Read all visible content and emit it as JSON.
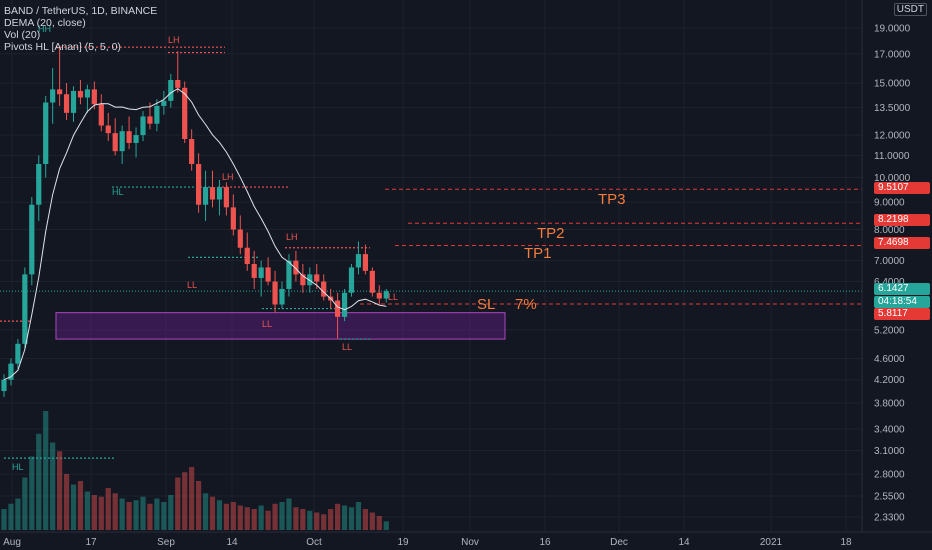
{
  "header": {
    "symbol_line": "BAND / TetherUS, 1D, BINANCE",
    "indicators": [
      "DEMA (20, close)",
      "Vol (20)",
      "Pivots HL [Anan] (5, 5, 0)"
    ]
  },
  "axis": {
    "currency": "USDT",
    "y_ticks": [
      "19.0000",
      "17.0000",
      "15.0000",
      "13.5000",
      "12.0000",
      "11.0000",
      "10.0000",
      "9.0000",
      "8.0000",
      "7.0000",
      "6.4000",
      "5.2000",
      "4.6000",
      "4.2000",
      "3.8000",
      "3.4000",
      "3.1000",
      "2.8000",
      "2.5500",
      "2.3300"
    ],
    "x_ticks": [
      "Aug",
      "17",
      "Sep",
      "14",
      "Oct",
      "19",
      "Nov",
      "16",
      "Dec",
      "14",
      "2021",
      "18"
    ]
  },
  "price_labels": {
    "tp3": "9.5107",
    "tp2": "8.2198",
    "tp1": "7.4698",
    "last": "6.1427",
    "countdown": "04:18:54",
    "sl": "5.8117"
  },
  "annotations": {
    "tp3": "TP3",
    "tp2": "TP2",
    "tp1": "TP1",
    "sl": "SL",
    "sl_pct": "7%"
  },
  "pivot_labels": [
    "HH",
    "LH",
    "HL",
    "LH",
    "LL",
    "LH",
    "LL",
    "LL",
    "HL",
    "LL"
  ],
  "colors": {
    "background": "#131722",
    "up": "#26a69a",
    "down": "#ef5350",
    "dema": "#e0e3eb",
    "zone": "#7b1fa2",
    "annotation": "#f57c3a",
    "level_line": "#e53935"
  },
  "chart_data": {
    "type": "candlestick",
    "title": "BAND / TetherUS, 1D, BINANCE",
    "scale": "log",
    "ylim": [
      2.2,
      21
    ],
    "timeframe": "1D",
    "x_range": [
      "Aug",
      "18"
    ],
    "candles": [
      [
        4.0,
        4.3,
        3.9,
        4.2
      ],
      [
        4.2,
        4.6,
        4.1,
        4.5
      ],
      [
        4.5,
        5.0,
        4.4,
        4.9
      ],
      [
        4.9,
        6.8,
        4.8,
        6.6
      ],
      [
        6.6,
        9.2,
        6.3,
        8.9
      ],
      [
        8.9,
        11.0,
        8.3,
        10.6
      ],
      [
        10.6,
        14.2,
        10.0,
        13.8
      ],
      [
        13.8,
        16.0,
        12.6,
        14.6
      ],
      [
        14.6,
        17.5,
        13.6,
        14.3
      ],
      [
        14.3,
        15.0,
        12.8,
        13.2
      ],
      [
        13.2,
        14.8,
        12.7,
        14.5
      ],
      [
        14.5,
        15.2,
        13.7,
        14.1
      ],
      [
        14.1,
        14.9,
        13.2,
        14.6
      ],
      [
        14.6,
        15.1,
        13.4,
        13.7
      ],
      [
        13.7,
        14.3,
        12.2,
        12.5
      ],
      [
        12.5,
        13.2,
        11.7,
        12.1
      ],
      [
        12.1,
        12.9,
        11.0,
        11.2
      ],
      [
        11.2,
        12.5,
        10.6,
        12.2
      ],
      [
        12.2,
        13.0,
        11.3,
        11.6
      ],
      [
        11.6,
        12.4,
        10.9,
        12.0
      ],
      [
        12.0,
        13.3,
        11.7,
        13.0
      ],
      [
        13.0,
        13.8,
        12.3,
        12.6
      ],
      [
        12.6,
        14.0,
        12.2,
        13.6
      ],
      [
        13.6,
        14.5,
        13.1,
        13.9
      ],
      [
        13.9,
        15.6,
        13.5,
        15.2
      ],
      [
        15.2,
        17.2,
        14.4,
        14.7
      ],
      [
        14.7,
        15.1,
        11.6,
        11.8
      ],
      [
        11.8,
        12.3,
        10.3,
        10.6
      ],
      [
        10.6,
        11.1,
        8.6,
        8.9
      ],
      [
        8.9,
        10.3,
        8.3,
        9.6
      ],
      [
        9.6,
        10.3,
        8.8,
        9.1
      ],
      [
        9.1,
        9.9,
        8.5,
        9.6
      ],
      [
        9.6,
        9.8,
        8.5,
        8.8
      ],
      [
        8.8,
        9.3,
        7.8,
        8.0
      ],
      [
        8.0,
        8.5,
        7.2,
        7.4
      ],
      [
        7.4,
        7.9,
        6.7,
        6.9
      ],
      [
        6.9,
        7.3,
        6.2,
        6.5
      ],
      [
        6.5,
        7.0,
        6.0,
        6.8
      ],
      [
        6.8,
        7.1,
        6.3,
        6.4
      ],
      [
        6.4,
        6.7,
        5.6,
        5.8
      ],
      [
        5.8,
        6.4,
        5.7,
        6.2
      ],
      [
        6.2,
        7.2,
        6.0,
        7.0
      ],
      [
        7.0,
        7.3,
        6.4,
        6.6
      ],
      [
        6.6,
        6.9,
        6.1,
        6.3
      ],
      [
        6.3,
        6.8,
        6.1,
        6.6
      ],
      [
        6.6,
        6.9,
        6.2,
        6.4
      ],
      [
        6.4,
        6.6,
        5.9,
        6.0
      ],
      [
        6.0,
        6.2,
        5.7,
        5.9
      ],
      [
        5.9,
        6.1,
        5.0,
        5.5
      ],
      [
        5.5,
        6.2,
        5.4,
        6.1
      ],
      [
        6.1,
        6.9,
        6.0,
        6.8
      ],
      [
        6.8,
        7.6,
        6.6,
        7.2
      ],
      [
        7.2,
        7.5,
        6.6,
        6.7
      ],
      [
        6.7,
        6.8,
        6.0,
        6.1
      ],
      [
        6.1,
        6.3,
        5.8,
        5.95
      ],
      [
        5.95,
        6.2,
        5.85,
        6.14
      ]
    ],
    "volume_scale": [
      0,
      8
    ],
    "volumes": [
      1.2,
      1.5,
      1.8,
      3.0,
      4.2,
      5.5,
      6.8,
      5.0,
      4.5,
      3.2,
      2.6,
      2.8,
      2.2,
      2.0,
      1.9,
      2.4,
      2.1,
      1.8,
      1.6,
      1.7,
      1.9,
      1.5,
      1.8,
      1.6,
      2.0,
      3.0,
      3.3,
      3.6,
      2.8,
      2.1,
      1.9,
      1.7,
      1.5,
      1.6,
      1.4,
      1.3,
      1.2,
      1.4,
      1.1,
      1.5,
      1.6,
      1.8,
      1.3,
      1.2,
      1.1,
      1.0,
      0.9,
      1.2,
      1.5,
      1.4,
      1.3,
      1.6,
      1.2,
      1.0,
      0.8,
      0.5
    ],
    "levels": [
      {
        "name": "TP3",
        "value": 9.5107
      },
      {
        "name": "TP2",
        "value": 8.2198
      },
      {
        "name": "TP1",
        "value": 7.4698
      },
      {
        "name": "SL",
        "value": 5.8117
      }
    ],
    "support_zone": [
      5.0,
      5.6
    ]
  }
}
